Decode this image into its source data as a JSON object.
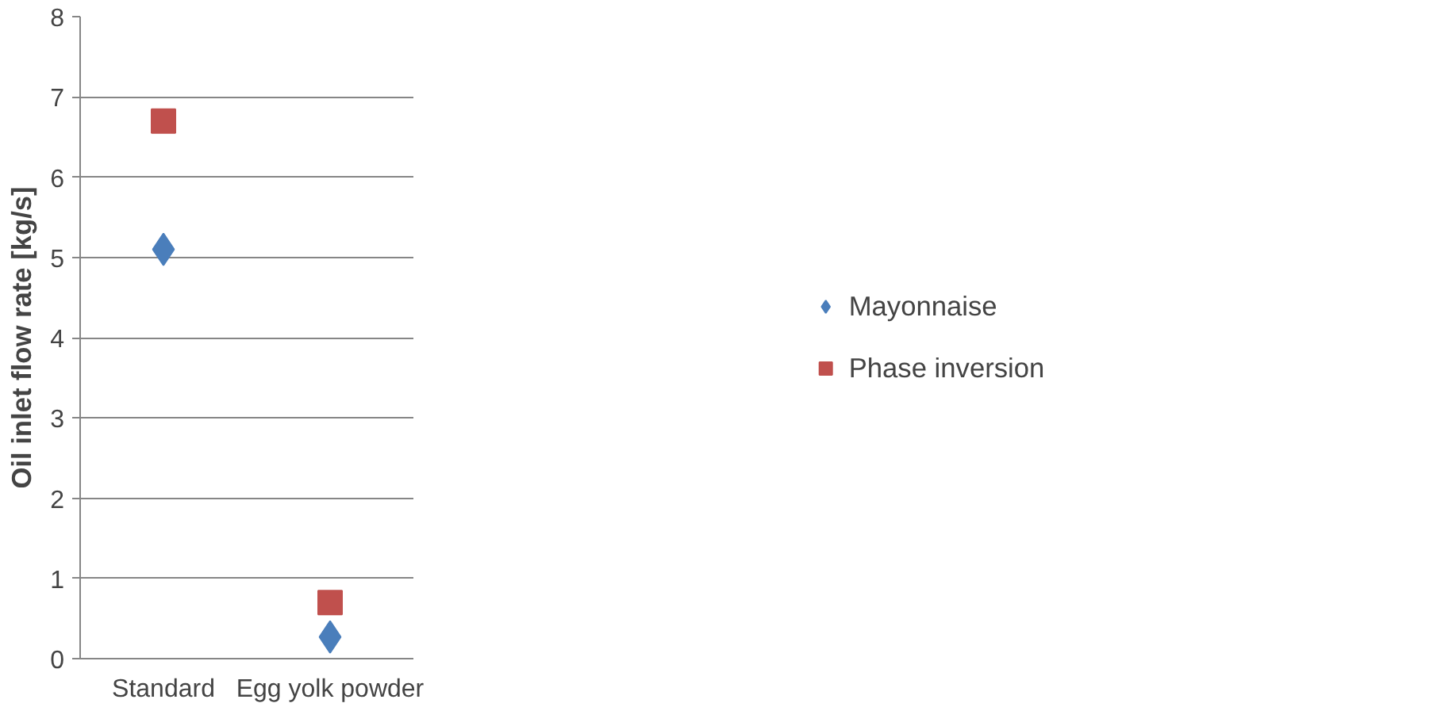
{
  "chart_data": {
    "type": "scatter",
    "ylabel": "Oil inlet flow rate [kg/s]",
    "categories": [
      "Standard",
      "Egg yolk powder"
    ],
    "series": [
      {
        "name": "Mayonnaise",
        "color": "#4a7ebb",
        "marker": "diamond",
        "values": [
          5.1,
          0.27
        ]
      },
      {
        "name": "Phase inversion",
        "color": "#c0504d",
        "marker": "square",
        "values": [
          6.7,
          0.7
        ]
      }
    ],
    "ylim": [
      0,
      8
    ],
    "yticks": [
      0,
      1,
      2,
      3,
      4,
      5,
      6,
      7,
      8
    ],
    "grid": "y",
    "legend": "right"
  }
}
